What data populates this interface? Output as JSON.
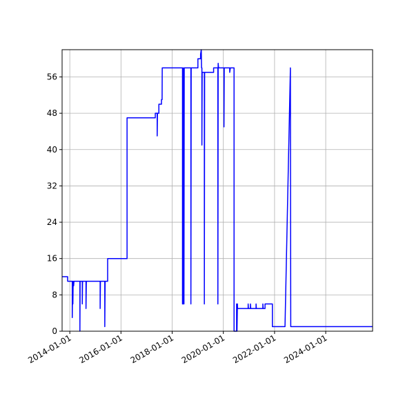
{
  "chart_data": {
    "type": "line",
    "title": "",
    "xlabel": "",
    "ylabel": "",
    "xlim": [
      "2013-09-13",
      "2025-10-31"
    ],
    "ylim": [
      0,
      62
    ],
    "grid": true,
    "line_color": "#0000ff",
    "x_ticks": [
      "2014-01-01",
      "2016-01-01",
      "2018-01-01",
      "2020-01-01",
      "2022-01-01",
      "2024-01-01"
    ],
    "y_ticks": [
      0,
      8,
      16,
      24,
      32,
      40,
      48,
      56
    ],
    "points": [
      [
        "2013-09-13",
        12
      ],
      [
        "2013-12-01",
        12
      ],
      [
        "2013-12-01",
        11
      ],
      [
        "2014-02-05",
        11
      ],
      [
        "2014-02-05",
        3
      ],
      [
        "2014-02-10",
        11
      ],
      [
        "2014-02-14",
        6
      ],
      [
        "2014-02-18",
        11
      ],
      [
        "2014-02-25",
        10
      ],
      [
        "2014-03-01",
        11
      ],
      [
        "2014-05-25",
        11
      ],
      [
        "2014-05-25",
        0
      ],
      [
        "2014-05-28",
        11
      ],
      [
        "2014-06-28",
        11
      ],
      [
        "2014-06-28",
        6
      ],
      [
        "2014-07-02",
        11
      ],
      [
        "2014-08-20",
        11
      ],
      [
        "2014-08-20",
        5
      ],
      [
        "2014-08-25",
        11
      ],
      [
        "2015-03-10",
        11
      ],
      [
        "2015-03-10",
        5
      ],
      [
        "2015-03-14",
        11
      ],
      [
        "2015-05-15",
        11
      ],
      [
        "2015-05-15",
        1
      ],
      [
        "2015-05-20",
        11
      ],
      [
        "2015-06-25",
        11
      ],
      [
        "2015-06-25",
        16
      ],
      [
        "2016-03-28",
        16
      ],
      [
        "2016-03-28",
        47
      ],
      [
        "2017-05-05",
        47
      ],
      [
        "2017-05-05",
        48
      ],
      [
        "2017-06-01",
        48
      ],
      [
        "2017-06-01",
        43
      ],
      [
        "2017-06-05",
        48
      ],
      [
        "2017-06-25",
        48
      ],
      [
        "2017-06-25",
        50
      ],
      [
        "2017-08-01",
        50
      ],
      [
        "2017-08-01",
        51
      ],
      [
        "2017-08-10",
        51
      ],
      [
        "2017-08-12",
        58
      ],
      [
        "2018-05-28",
        58
      ],
      [
        "2018-05-28",
        6
      ],
      [
        "2018-06-01",
        58
      ],
      [
        "2018-06-08",
        6
      ],
      [
        "2018-06-12",
        58
      ],
      [
        "2018-06-18",
        6
      ],
      [
        "2018-06-22",
        58
      ],
      [
        "2018-09-25",
        58
      ],
      [
        "2018-09-25",
        6
      ],
      [
        "2018-09-29",
        58
      ],
      [
        "2019-01-03",
        58
      ],
      [
        "2019-01-03",
        60
      ],
      [
        "2019-02-10",
        60
      ],
      [
        "2019-02-10",
        61
      ],
      [
        "2019-02-20",
        62
      ],
      [
        "2019-02-24",
        58
      ],
      [
        "2019-03-01",
        58
      ],
      [
        "2019-03-01",
        41
      ],
      [
        "2019-03-05",
        57
      ],
      [
        "2019-04-05",
        57
      ],
      [
        "2019-04-05",
        6
      ],
      [
        "2019-04-09",
        57
      ],
      [
        "2019-08-15",
        57
      ],
      [
        "2019-08-15",
        58
      ],
      [
        "2019-10-15",
        58
      ],
      [
        "2019-10-15",
        6
      ],
      [
        "2019-10-19",
        59
      ],
      [
        "2019-10-25",
        58
      ],
      [
        "2020-01-10",
        58
      ],
      [
        "2020-01-10",
        45
      ],
      [
        "2020-01-14",
        58
      ],
      [
        "2020-04-01",
        58
      ],
      [
        "2020-04-01",
        57
      ],
      [
        "2020-04-10",
        58
      ],
      [
        "2020-06-02",
        58
      ],
      [
        "2020-06-02",
        0
      ],
      [
        "2020-07-08",
        0
      ],
      [
        "2020-07-08",
        6
      ],
      [
        "2020-07-14",
        0
      ],
      [
        "2020-07-20",
        6
      ],
      [
        "2020-07-22",
        5
      ],
      [
        "2020-12-20",
        5
      ],
      [
        "2020-12-20",
        6
      ],
      [
        "2020-12-24",
        5
      ],
      [
        "2021-01-22",
        5
      ],
      [
        "2021-01-22",
        6
      ],
      [
        "2021-01-26",
        5
      ],
      [
        "2021-04-12",
        5
      ],
      [
        "2021-04-12",
        6
      ],
      [
        "2021-04-16",
        5
      ],
      [
        "2021-07-18",
        5
      ],
      [
        "2021-07-18",
        6
      ],
      [
        "2021-07-22",
        5
      ],
      [
        "2021-08-18",
        5
      ],
      [
        "2021-08-18",
        6
      ],
      [
        "2021-12-01",
        6
      ],
      [
        "2021-12-01",
        1
      ],
      [
        "2022-05-30",
        1
      ],
      [
        "2022-08-15",
        58
      ],
      [
        "2022-08-20",
        1
      ],
      [
        "2025-10-31",
        1
      ]
    ]
  }
}
